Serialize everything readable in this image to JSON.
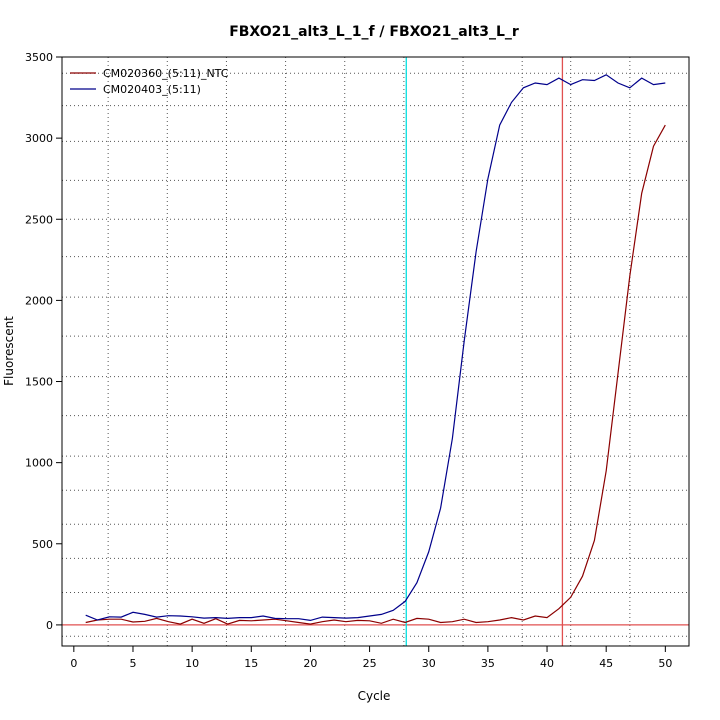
{
  "chart_data": {
    "type": "line",
    "title": "FBXO21_alt3_L_1_f / FBXO21_alt3_L_r",
    "xlabel": "Cycle",
    "ylabel": "Fluorescent",
    "xlim": [
      -1,
      52
    ],
    "ylim": [
      -130,
      3500
    ],
    "x_ticks": [
      0,
      5,
      10,
      15,
      20,
      25,
      30,
      35,
      40,
      45,
      50
    ],
    "y_ticks": [
      0,
      500,
      1000,
      1500,
      2000,
      2500,
      3000,
      3500
    ],
    "x_grid": [
      2.9,
      7.9,
      12.9,
      17.9,
      22.9,
      27.9,
      32.9,
      37.9,
      42.0,
      47.0
    ],
    "y_grid": [
      -70,
      200,
      410,
      620,
      830,
      1040,
      1290,
      1530,
      1780,
      2020,
      2270,
      2500,
      2740,
      2980,
      3200,
      3400
    ],
    "baseline": 0,
    "threshold_lines": [
      {
        "x": 28.1,
        "color": "#00e0e0"
      },
      {
        "x": 41.3,
        "color": "#e05050"
      }
    ],
    "legend": "top-left",
    "grid": true,
    "series": [
      {
        "name": "CM020360_(5:11)_NTC",
        "color": "#8b0000",
        "x": [
          1,
          2,
          3,
          4,
          5,
          6,
          7,
          8,
          9,
          10,
          11,
          12,
          13,
          14,
          15,
          16,
          17,
          18,
          19,
          20,
          21,
          22,
          23,
          24,
          25,
          26,
          27,
          28,
          29,
          30,
          31,
          32,
          33,
          34,
          35,
          36,
          37,
          38,
          39,
          40,
          41,
          42,
          43,
          44,
          45,
          46,
          47,
          48,
          49,
          50
        ],
        "values": [
          15,
          30,
          35,
          35,
          18,
          22,
          40,
          20,
          5,
          35,
          10,
          38,
          5,
          28,
          25,
          30,
          35,
          25,
          15,
          5,
          20,
          30,
          20,
          28,
          25,
          10,
          35,
          15,
          40,
          35,
          15,
          20,
          35,
          15,
          20,
          30,
          45,
          30,
          55,
          45,
          100,
          170,
          300,
          520,
          950,
          1550,
          2150,
          2660,
          2950,
          3080
        ]
      },
      {
        "name": "CM020403_(5:11)",
        "color": "#00008b",
        "x": [
          1,
          2,
          3,
          4,
          5,
          6,
          7,
          8,
          9,
          10,
          11,
          12,
          13,
          14,
          15,
          16,
          17,
          18,
          19,
          20,
          21,
          22,
          23,
          24,
          25,
          26,
          27,
          28,
          29,
          30,
          31,
          32,
          33,
          34,
          35,
          36,
          37,
          38,
          39,
          40,
          41,
          42,
          43,
          44,
          45,
          46,
          47,
          48,
          49,
          50
        ],
        "values": [
          60,
          30,
          50,
          48,
          78,
          65,
          48,
          57,
          55,
          50,
          42,
          45,
          40,
          45,
          45,
          55,
          40,
          38,
          38,
          28,
          48,
          45,
          42,
          45,
          55,
          65,
          90,
          145,
          260,
          450,
          720,
          1150,
          1750,
          2300,
          2750,
          3080,
          3220,
          3310,
          3340,
          3330,
          3370,
          3330,
          3360,
          3355,
          3390,
          3340,
          3310,
          3370,
          3330,
          3340
        ]
      }
    ]
  }
}
